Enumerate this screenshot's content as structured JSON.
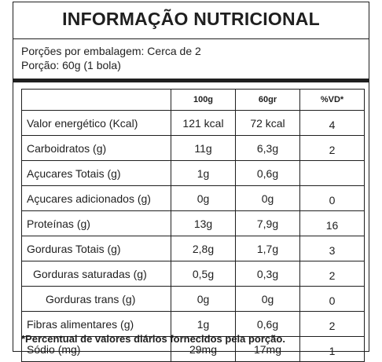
{
  "label": {
    "title": "INFORMAÇÃO NUTRICIONAL",
    "servings_per_package": "Porções por embalagem: Cerca de 2",
    "serving_size": "Porção: 60g (1 bola)",
    "columns": {
      "c1": "100g",
      "c2": "60gr",
      "c3": "%VD*"
    },
    "rows": [
      {
        "name": "Valor energético (Kcal)",
        "per100": "121 kcal",
        "per60": "72 kcal",
        "vd": "4"
      },
      {
        "name": "Carboidratos (g)",
        "per100": "11g",
        "per60": "6,3g",
        "vd": "2"
      },
      {
        "name": "Açucares Totais (g)",
        "per100": "1g",
        "per60": "0,6g",
        "vd": ""
      },
      {
        "name": "Açucares adicionados (g)",
        "per100": "0g",
        "per60": "0g",
        "vd": "0"
      },
      {
        "name": "Proteínas (g)",
        "per100": "13g",
        "per60": "7,9g",
        "vd": "16"
      },
      {
        "name": "Gorduras Totais (g)",
        "per100": "2,8g",
        "per60": "1,7g",
        "vd": "3"
      },
      {
        "name": "Gorduras saturadas (g)",
        "per100": "0,5g",
        "per60": "0,3g",
        "vd": "2"
      },
      {
        "name": "Gorduras trans (g)",
        "per100": "0g",
        "per60": "0g",
        "vd": "0"
      },
      {
        "name": "Fibras alimentares (g)",
        "per100": "1g",
        "per60": "0,6g",
        "vd": "2"
      },
      {
        "name": "Sódio (mg)",
        "per100": "29mg",
        "per60": "17mg",
        "vd": "1"
      }
    ],
    "footnote": "*Percentual de valores diários fornecidos pela porção."
  }
}
